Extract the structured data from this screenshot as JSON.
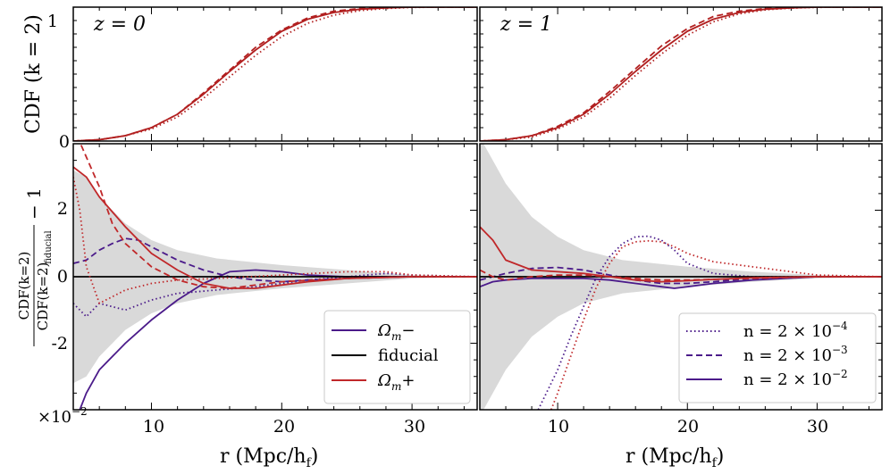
{
  "chart_data": {
    "type": "line",
    "x_range": [
      4,
      35
    ],
    "x_ticks": [
      10,
      20,
      30
    ],
    "xlabel": "r (Mpc/h_f)",
    "xlabel_text": "r (Mpc/h",
    "xlabel_sub": "f",
    "xlabel_close": ")",
    "panels_top": [
      {
        "label": "z = 0",
        "ylabel": "CDF (k = 2)",
        "ylim": [
          0,
          1
        ],
        "y_ticks": [
          0,
          1
        ],
        "series": [
          {
            "name": "fiducial",
            "color": "#b22020",
            "style": "solid",
            "x": [
              4,
              6,
              8,
              10,
              12,
              14,
              16,
              18,
              20,
              22,
              24,
              26,
              28,
              30,
              32,
              35
            ],
            "y": [
              0.0,
              0.01,
              0.04,
              0.1,
              0.2,
              0.35,
              0.52,
              0.68,
              0.82,
              0.91,
              0.96,
              0.985,
              0.995,
              1.0,
              1.0,
              1.0
            ]
          },
          {
            "name": "n = 2e-3",
            "color": "#b22020",
            "style": "dashed",
            "x": [
              4,
              6,
              8,
              10,
              12,
              14,
              16,
              18,
              20,
              22,
              24,
              26,
              28,
              30,
              32,
              35
            ],
            "y": [
              0.0,
              0.01,
              0.04,
              0.1,
              0.2,
              0.36,
              0.53,
              0.7,
              0.83,
              0.92,
              0.97,
              0.99,
              0.997,
              1.0,
              1.0,
              1.0
            ]
          },
          {
            "name": "n = 2e-4",
            "color": "#b22020",
            "style": "dotted",
            "x": [
              4,
              6,
              8,
              10,
              12,
              14,
              16,
              18,
              20,
              22,
              24,
              26,
              28,
              30,
              32,
              35
            ],
            "y": [
              0.0,
              0.01,
              0.04,
              0.09,
              0.18,
              0.32,
              0.48,
              0.64,
              0.78,
              0.88,
              0.94,
              0.975,
              0.99,
              0.998,
              1.0,
              1.0
            ]
          }
        ]
      },
      {
        "label": "z = 1",
        "ylim": [
          0,
          1
        ],
        "y_ticks": [
          0,
          1
        ],
        "series": [
          {
            "name": "fiducial",
            "color": "#b22020",
            "style": "solid",
            "x": [
              4,
              6,
              8,
              10,
              12,
              14,
              16,
              18,
              20,
              22,
              24,
              26,
              28,
              30,
              32,
              35
            ],
            "y": [
              0.0,
              0.01,
              0.04,
              0.1,
              0.2,
              0.35,
              0.52,
              0.68,
              0.82,
              0.91,
              0.96,
              0.985,
              0.995,
              1.0,
              1.0,
              1.0
            ]
          },
          {
            "name": "n = 2e-3",
            "color": "#b22020",
            "style": "dashed",
            "x": [
              4,
              6,
              8,
              10,
              12,
              14,
              16,
              18,
              20,
              22,
              24,
              26,
              28,
              30,
              32,
              35
            ],
            "y": [
              0.0,
              0.01,
              0.04,
              0.11,
              0.21,
              0.37,
              0.54,
              0.71,
              0.84,
              0.93,
              0.97,
              0.99,
              0.997,
              1.0,
              1.0,
              1.0
            ]
          },
          {
            "name": "n = 2e-4",
            "color": "#b22020",
            "style": "dotted",
            "x": [
              4,
              6,
              8,
              10,
              12,
              14,
              16,
              18,
              20,
              22,
              24,
              26,
              28,
              30,
              32,
              35
            ],
            "y": [
              0.0,
              0.01,
              0.03,
              0.09,
              0.18,
              0.32,
              0.49,
              0.65,
              0.79,
              0.89,
              0.95,
              0.98,
              0.993,
              0.999,
              1.0,
              1.0
            ]
          }
        ]
      }
    ],
    "panels_bottom": [
      {
        "ylabel_num": "CDF(k=2)",
        "ylabel_den": "CDF(k=2)",
        "ylabel_den_sub": "fiducial",
        "ylabel_tail": "− 1",
        "ylim": [
          -4,
          4
        ],
        "y_ticks": [
          -2,
          0,
          2
        ],
        "multiplier": "×10",
        "multiplier_exp": "−2",
        "band": {
          "x": [
            4,
            5,
            6,
            8,
            10,
            12,
            15,
            20,
            25,
            30,
            35
          ],
          "upper": [
            3.2,
            3.0,
            2.4,
            1.6,
            1.1,
            0.8,
            0.55,
            0.35,
            0.2,
            0.05,
            0.0
          ],
          "lower": [
            -3.2,
            -3.0,
            -2.4,
            -1.6,
            -1.1,
            -0.8,
            -0.55,
            -0.35,
            -0.2,
            -0.05,
            0.0
          ]
        },
        "series": [
          {
            "name": "Ωm- n=2e-2",
            "color": "#4b1b8a",
            "style": "solid",
            "x": [
              4,
              5,
              6,
              8,
              10,
              12,
              14,
              16,
              18,
              20,
              22,
              25,
              30,
              35
            ],
            "y": [
              -4.5,
              -3.5,
              -2.8,
              -2.0,
              -1.3,
              -0.7,
              -0.2,
              0.15,
              0.2,
              0.15,
              0.05,
              0.0,
              0.0,
              0.0
            ]
          },
          {
            "name": "Ωm- n=2e-3",
            "color": "#4b1b8a",
            "style": "dashed",
            "x": [
              4,
              5,
              6,
              7,
              8,
              9,
              10,
              12,
              14,
              16,
              18,
              20,
              22,
              25,
              30,
              35
            ],
            "y": [
              0.4,
              0.5,
              0.8,
              1.0,
              1.15,
              1.1,
              0.9,
              0.5,
              0.2,
              0.0,
              -0.1,
              -0.15,
              -0.1,
              -0.05,
              0.0,
              0.0
            ]
          },
          {
            "name": "Ωm- n=2e-4",
            "color": "#4b1b8a",
            "style": "dotted",
            "x": [
              4,
              5,
              6,
              7,
              8,
              10,
              12,
              15,
              18,
              20,
              22,
              25,
              28,
              30,
              35
            ],
            "y": [
              -0.8,
              -1.2,
              -0.8,
              -0.9,
              -1.0,
              -0.7,
              -0.5,
              -0.4,
              -0.3,
              -0.2,
              -0.1,
              0.0,
              0.1,
              0.05,
              0.0
            ]
          },
          {
            "name": "fiducial",
            "color": "#000000",
            "style": "solid",
            "x": [
              4,
              35
            ],
            "y": [
              0.0,
              0.0
            ]
          },
          {
            "name": "Ωm+ n=2e-2",
            "color": "#c0282a",
            "style": "solid",
            "x": [
              4,
              5,
              6,
              8,
              10,
              12,
              14,
              16,
              18,
              20,
              22,
              25,
              30,
              35
            ],
            "y": [
              3.3,
              3.0,
              2.4,
              1.5,
              0.7,
              0.2,
              -0.2,
              -0.35,
              -0.35,
              -0.25,
              -0.15,
              -0.05,
              0.0,
              0.0
            ]
          },
          {
            "name": "Ωm+ n=2e-3",
            "color": "#c0282a",
            "style": "dashed",
            "x": [
              4,
              5,
              6,
              7,
              8,
              10,
              12,
              14,
              16,
              18,
              20,
              25,
              30,
              35
            ],
            "y": [
              4.5,
              3.6,
              2.7,
              1.6,
              1.0,
              0.3,
              -0.1,
              -0.3,
              -0.35,
              -0.25,
              -0.15,
              -0.05,
              0.0,
              0.0
            ]
          },
          {
            "name": "Ωm+ n=2e-4",
            "color": "#c0282a",
            "style": "dotted",
            "x": [
              4,
              4.5,
              5,
              6,
              7,
              8,
              10,
              12,
              15,
              20,
              25,
              28,
              30,
              35
            ],
            "y": [
              3.0,
              2.0,
              0.3,
              -0.8,
              -0.6,
              -0.4,
              -0.2,
              -0.1,
              -0.05,
              0.05,
              0.15,
              0.15,
              0.05,
              0.0
            ]
          }
        ],
        "legend": [
          {
            "label": "Ω",
            "sub": "m",
            "tail": "−",
            "color": "#4b1b8a",
            "style": "solid"
          },
          {
            "label": "fiducial",
            "sub": "",
            "tail": "",
            "color": "#000000",
            "style": "solid"
          },
          {
            "label": "Ω",
            "sub": "m",
            "tail": "+",
            "color": "#c0282a",
            "style": "solid"
          }
        ]
      },
      {
        "ylim": [
          -4,
          4
        ],
        "y_ticks": [
          -2,
          0,
          2
        ],
        "band": {
          "x": [
            4,
            5,
            6,
            8,
            10,
            12,
            15,
            20,
            25,
            30,
            35
          ],
          "upper": [
            4.2,
            3.5,
            2.8,
            1.8,
            1.2,
            0.8,
            0.5,
            0.3,
            0.15,
            0.05,
            0.0
          ],
          "lower": [
            -4.2,
            -3.5,
            -2.8,
            -1.8,
            -1.2,
            -0.8,
            -0.5,
            -0.3,
            -0.15,
            -0.05,
            0.0
          ]
        },
        "series": [
          {
            "name": "Ωm- n=2e-2",
            "color": "#4b1b8a",
            "style": "solid",
            "x": [
              4,
              5,
              6,
              8,
              10,
              12,
              14,
              16,
              18,
              19,
              20,
              22,
              25,
              30,
              35
            ],
            "y": [
              -0.3,
              -0.15,
              -0.1,
              -0.05,
              -0.05,
              -0.05,
              -0.1,
              -0.2,
              -0.3,
              -0.35,
              -0.3,
              -0.2,
              -0.1,
              0.0,
              0.0
            ]
          },
          {
            "name": "Ωm- n=2e-3",
            "color": "#4b1b8a",
            "style": "dashed",
            "x": [
              4,
              5,
              6,
              8,
              10,
              12,
              14,
              16,
              18,
              20,
              22,
              25,
              30,
              35
            ],
            "y": [
              -0.1,
              0.0,
              0.1,
              0.25,
              0.28,
              0.2,
              0.05,
              -0.1,
              -0.2,
              -0.2,
              -0.15,
              -0.05,
              0.0,
              0.0
            ]
          },
          {
            "name": "Ωm- n=2e-4",
            "color": "#4b1b8a",
            "style": "dotted",
            "x": [
              8.5,
              9,
              10,
              11,
              12,
              13,
              14,
              15,
              16,
              17,
              18,
              19,
              20,
              22,
              25,
              30,
              35
            ],
            "y": [
              -4.0,
              -3.6,
              -2.8,
              -1.8,
              -0.9,
              0.0,
              0.6,
              1.0,
              1.2,
              1.22,
              1.1,
              0.8,
              0.4,
              0.1,
              0.0,
              0.0,
              0.0
            ]
          },
          {
            "name": "fiducial",
            "color": "#000000",
            "style": "solid",
            "x": [
              4,
              35
            ],
            "y": [
              0.0,
              0.0
            ]
          },
          {
            "name": "Ωm+ n=2e-2",
            "color": "#c0282a",
            "style": "solid",
            "x": [
              4,
              5,
              6,
              8,
              10,
              12,
              14,
              16,
              18,
              20,
              22,
              25,
              30,
              35
            ],
            "y": [
              1.5,
              1.1,
              0.5,
              0.2,
              0.15,
              0.1,
              0.0,
              -0.1,
              -0.15,
              -0.12,
              -0.08,
              -0.03,
              0.0,
              0.0
            ]
          },
          {
            "name": "Ωm+ n=2e-3",
            "color": "#c0282a",
            "style": "dashed",
            "x": [
              4,
              5,
              6,
              7,
              8,
              10,
              12,
              14,
              16,
              18,
              20,
              25,
              30,
              35
            ],
            "y": [
              0.2,
              0.0,
              -0.1,
              -0.05,
              0.0,
              0.05,
              0.05,
              0.0,
              -0.05,
              -0.1,
              -0.1,
              -0.05,
              0.0,
              0.0
            ]
          },
          {
            "name": "Ωm+ n=2e-4",
            "color": "#c0282a",
            "style": "dotted",
            "x": [
              9.5,
              10,
              11,
              12,
              13,
              14,
              15,
              16,
              17,
              18,
              19,
              20,
              22,
              25,
              28,
              30,
              35
            ],
            "y": [
              -4.0,
              -3.5,
              -2.4,
              -1.3,
              -0.3,
              0.4,
              0.9,
              1.05,
              1.08,
              1.05,
              0.9,
              0.7,
              0.45,
              0.3,
              0.15,
              0.05,
              0.0
            ]
          }
        ],
        "legend": [
          {
            "label": "n = 2 × 10",
            "exp": "−4",
            "color": "#4b1b8a",
            "style": "dotted"
          },
          {
            "label": "n = 2 × 10",
            "exp": "−3",
            "color": "#4b1b8a",
            "style": "dashed"
          },
          {
            "label": "n = 2 × 10",
            "exp": "−2",
            "color": "#4b1b8a",
            "style": "solid"
          }
        ]
      }
    ]
  }
}
